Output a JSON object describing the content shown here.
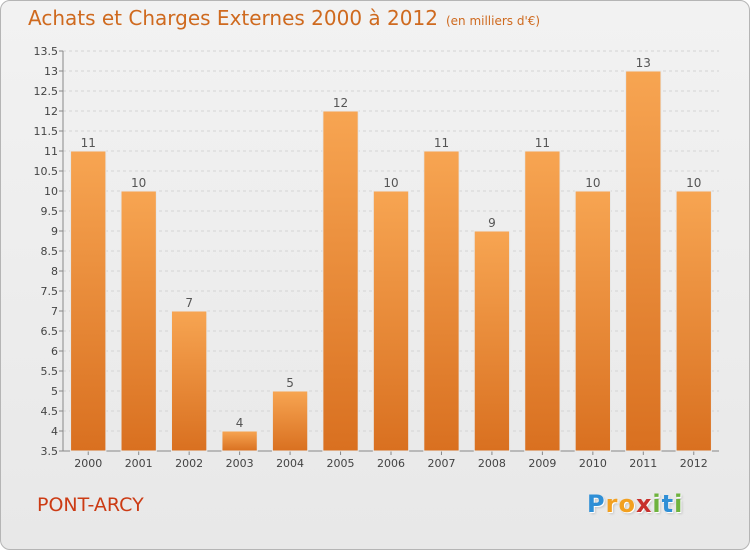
{
  "header": {
    "title": "Achats et Charges Externes 2000 à 2012",
    "subtitle": "(en milliers d'€)"
  },
  "location": "PONT-ARCY",
  "logo": {
    "text": "Proxiti",
    "letters": [
      {
        "ch": "P",
        "color": "#2f8fd6"
      },
      {
        "ch": "r",
        "color": "#f2a020"
      },
      {
        "ch": "o",
        "color": "#f2a020"
      },
      {
        "ch": "x",
        "color": "#c8302c"
      },
      {
        "ch": "i",
        "color": "#6fb33e"
      },
      {
        "ch": "t",
        "color": "#2f8fd6"
      },
      {
        "ch": "i",
        "color": "#6fb33e"
      }
    ]
  },
  "chart_data": {
    "type": "bar",
    "title": "Achats et Charges Externes 2000 à 2012",
    "subtitle": "(en milliers d'€)",
    "categories": [
      "2000",
      "2001",
      "2002",
      "2003",
      "2004",
      "2005",
      "2006",
      "2007",
      "2008",
      "2009",
      "2010",
      "2011",
      "2012"
    ],
    "values": [
      11,
      10,
      7,
      4,
      5,
      12,
      10,
      11,
      9,
      11,
      10,
      13,
      10
    ],
    "value_labels": [
      "11",
      "10",
      "7",
      "4",
      "5",
      "12",
      "10",
      "11",
      "9",
      "11",
      "10",
      "13",
      "10"
    ],
    "ylim": [
      3.5,
      13.5
    ],
    "yticks": [
      "3.5",
      "4",
      "4.5",
      "5",
      "5.5",
      "6",
      "6.5",
      "7",
      "7.5",
      "8",
      "8.5",
      "9",
      "9.5",
      "10",
      "10.5",
      "11",
      "11.5",
      "12",
      "12.5",
      "13",
      "13.5"
    ],
    "grid": true,
    "bar_color_light": "#f7a552",
    "bar_color_dark": "#d97020"
  }
}
